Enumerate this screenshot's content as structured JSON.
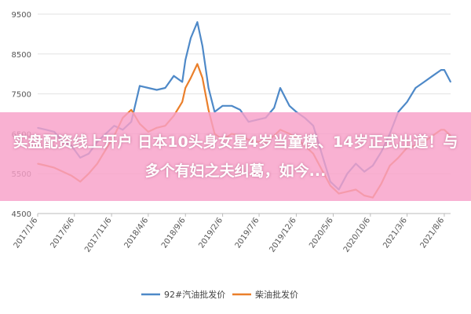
{
  "banner": {
    "text": "实盘配资线上开户 日本10头身女星4岁当童模、14岁正式出道！与多个有妇之夫纠葛，如今..."
  },
  "colors": {
    "series_gasoline": "#4e89c8",
    "series_diesel": "#ea7f2b",
    "grid": "#e2e2e2",
    "banner_bg": "#f8a0c8",
    "banner_text": "#ffffff"
  },
  "chart_data": {
    "type": "line",
    "title": "",
    "xlabel": "",
    "ylabel": "",
    "ylim": [
      4500,
      9500
    ],
    "yticks": [
      4500,
      5500,
      6500,
      7500,
      8500,
      9500
    ],
    "grid": "horizontal",
    "legend_position": "bottom",
    "x_tick_labels": [
      "2017/1/6",
      "2017/6/6",
      "2017/11/6",
      "2018/4/6",
      "2018/9/6",
      "2019/2/6",
      "2019/7/6",
      "2019/12/6",
      "2020/5/6",
      "2020/10/6",
      "2021/3/6",
      "2021/8/6"
    ],
    "x_start": "2017/1/6",
    "x_end": "2021/9/1",
    "series": [
      {
        "name": "92#汽油批发价",
        "color": "#4e89c8",
        "points": [
          [
            "2017/1/6",
            6650
          ],
          [
            "2017/2/10",
            6600
          ],
          [
            "2017/3/15",
            6550
          ],
          [
            "2017/4/20",
            6300
          ],
          [
            "2017/5/25",
            6200
          ],
          [
            "2017/6/30",
            5900
          ],
          [
            "2017/8/4",
            6000
          ],
          [
            "2017/9/8",
            6300
          ],
          [
            "2017/10/13",
            6500
          ],
          [
            "2017/11/17",
            6700
          ],
          [
            "2017/12/22",
            6600
          ],
          [
            "2018/1/26",
            6800
          ],
          [
            "2018/3/2",
            7700
          ],
          [
            "2018/4/6",
            7650
          ],
          [
            "2018/5/11",
            7600
          ],
          [
            "2018/6/15",
            7650
          ],
          [
            "2018/7/20",
            7950
          ],
          [
            "2018/8/24",
            7800
          ],
          [
            "2018/9/6",
            8350
          ],
          [
            "2018/9/28",
            8900
          ],
          [
            "2018/10/25",
            9300
          ],
          [
            "2018/11/15",
            8700
          ],
          [
            "2018/12/10",
            7650
          ],
          [
            "2019/1/4",
            7050
          ],
          [
            "2019/2/6",
            7200
          ],
          [
            "2019/3/15",
            7200
          ],
          [
            "2019/4/19",
            7100
          ],
          [
            "2019/5/24",
            6800
          ],
          [
            "2019/6/28",
            6850
          ],
          [
            "2019/8/2",
            6900
          ],
          [
            "2019/9/6",
            7150
          ],
          [
            "2019/10/1",
            7650
          ],
          [
            "2019/11/8",
            7200
          ],
          [
            "2019/12/6",
            7050
          ],
          [
            "2020/1/10",
            6900
          ],
          [
            "2020/2/14",
            6700
          ],
          [
            "2020/3/20",
            6000
          ],
          [
            "2020/4/24",
            5300
          ],
          [
            "2020/5/29",
            5100
          ],
          [
            "2020/7/3",
            5500
          ],
          [
            "2020/8/7",
            5750
          ],
          [
            "2020/9/11",
            5550
          ],
          [
            "2020/10/16",
            5700
          ],
          [
            "2020/11/20",
            6050
          ],
          [
            "2020/12/25",
            6500
          ],
          [
            "2021/1/29",
            7050
          ],
          [
            "2021/3/6",
            7300
          ],
          [
            "2021/4/10",
            7650
          ],
          [
            "2021/5/15",
            7800
          ],
          [
            "2021/6/19",
            7950
          ],
          [
            "2021/7/24",
            8100
          ],
          [
            "2021/8/6",
            8100
          ],
          [
            "2021/9/1",
            7800
          ]
        ]
      },
      {
        "name": "柴油批发价",
        "color": "#ea7f2b",
        "points": [
          [
            "2017/1/6",
            5750
          ],
          [
            "2017/2/10",
            5700
          ],
          [
            "2017/3/15",
            5650
          ],
          [
            "2017/4/20",
            5550
          ],
          [
            "2017/5/25",
            5450
          ],
          [
            "2017/6/30",
            5300
          ],
          [
            "2017/8/4",
            5500
          ],
          [
            "2017/9/8",
            5750
          ],
          [
            "2017/10/13",
            6100
          ],
          [
            "2017/11/17",
            6450
          ],
          [
            "2017/12/22",
            6900
          ],
          [
            "2018/1/26",
            7100
          ],
          [
            "2018/3/2",
            6750
          ],
          [
            "2018/4/6",
            6550
          ],
          [
            "2018/5/11",
            6650
          ],
          [
            "2018/6/15",
            6700
          ],
          [
            "2018/7/20",
            6950
          ],
          [
            "2018/8/24",
            7300
          ],
          [
            "2018/9/6",
            7650
          ],
          [
            "2018/9/28",
            7900
          ],
          [
            "2018/10/25",
            8250
          ],
          [
            "2018/11/15",
            7900
          ],
          [
            "2018/12/10",
            7100
          ],
          [
            "2019/1/4",
            6500
          ],
          [
            "2019/2/6",
            6350
          ],
          [
            "2019/3/15",
            6500
          ],
          [
            "2019/4/19",
            6450
          ],
          [
            "2019/5/24",
            6350
          ],
          [
            "2019/6/28",
            6300
          ],
          [
            "2019/8/2",
            6300
          ],
          [
            "2019/9/6",
            6450
          ],
          [
            "2019/10/1",
            6600
          ],
          [
            "2019/11/8",
            6500
          ],
          [
            "2019/12/6",
            6400
          ],
          [
            "2020/1/10",
            6200
          ],
          [
            "2020/2/14",
            6000
          ],
          [
            "2020/3/20",
            5600
          ],
          [
            "2020/4/24",
            5200
          ],
          [
            "2020/5/29",
            5000
          ],
          [
            "2020/7/3",
            5050
          ],
          [
            "2020/8/7",
            5100
          ],
          [
            "2020/9/11",
            4950
          ],
          [
            "2020/10/16",
            4900
          ],
          [
            "2020/11/20",
            5250
          ],
          [
            "2020/12/25",
            5700
          ],
          [
            "2021/1/29",
            5900
          ],
          [
            "2021/3/6",
            6150
          ],
          [
            "2021/4/10",
            6200
          ],
          [
            "2021/5/15",
            6300
          ],
          [
            "2021/6/19",
            6450
          ],
          [
            "2021/7/24",
            6600
          ],
          [
            "2021/8/6",
            6600
          ],
          [
            "2021/9/1",
            6450
          ]
        ]
      }
    ]
  }
}
